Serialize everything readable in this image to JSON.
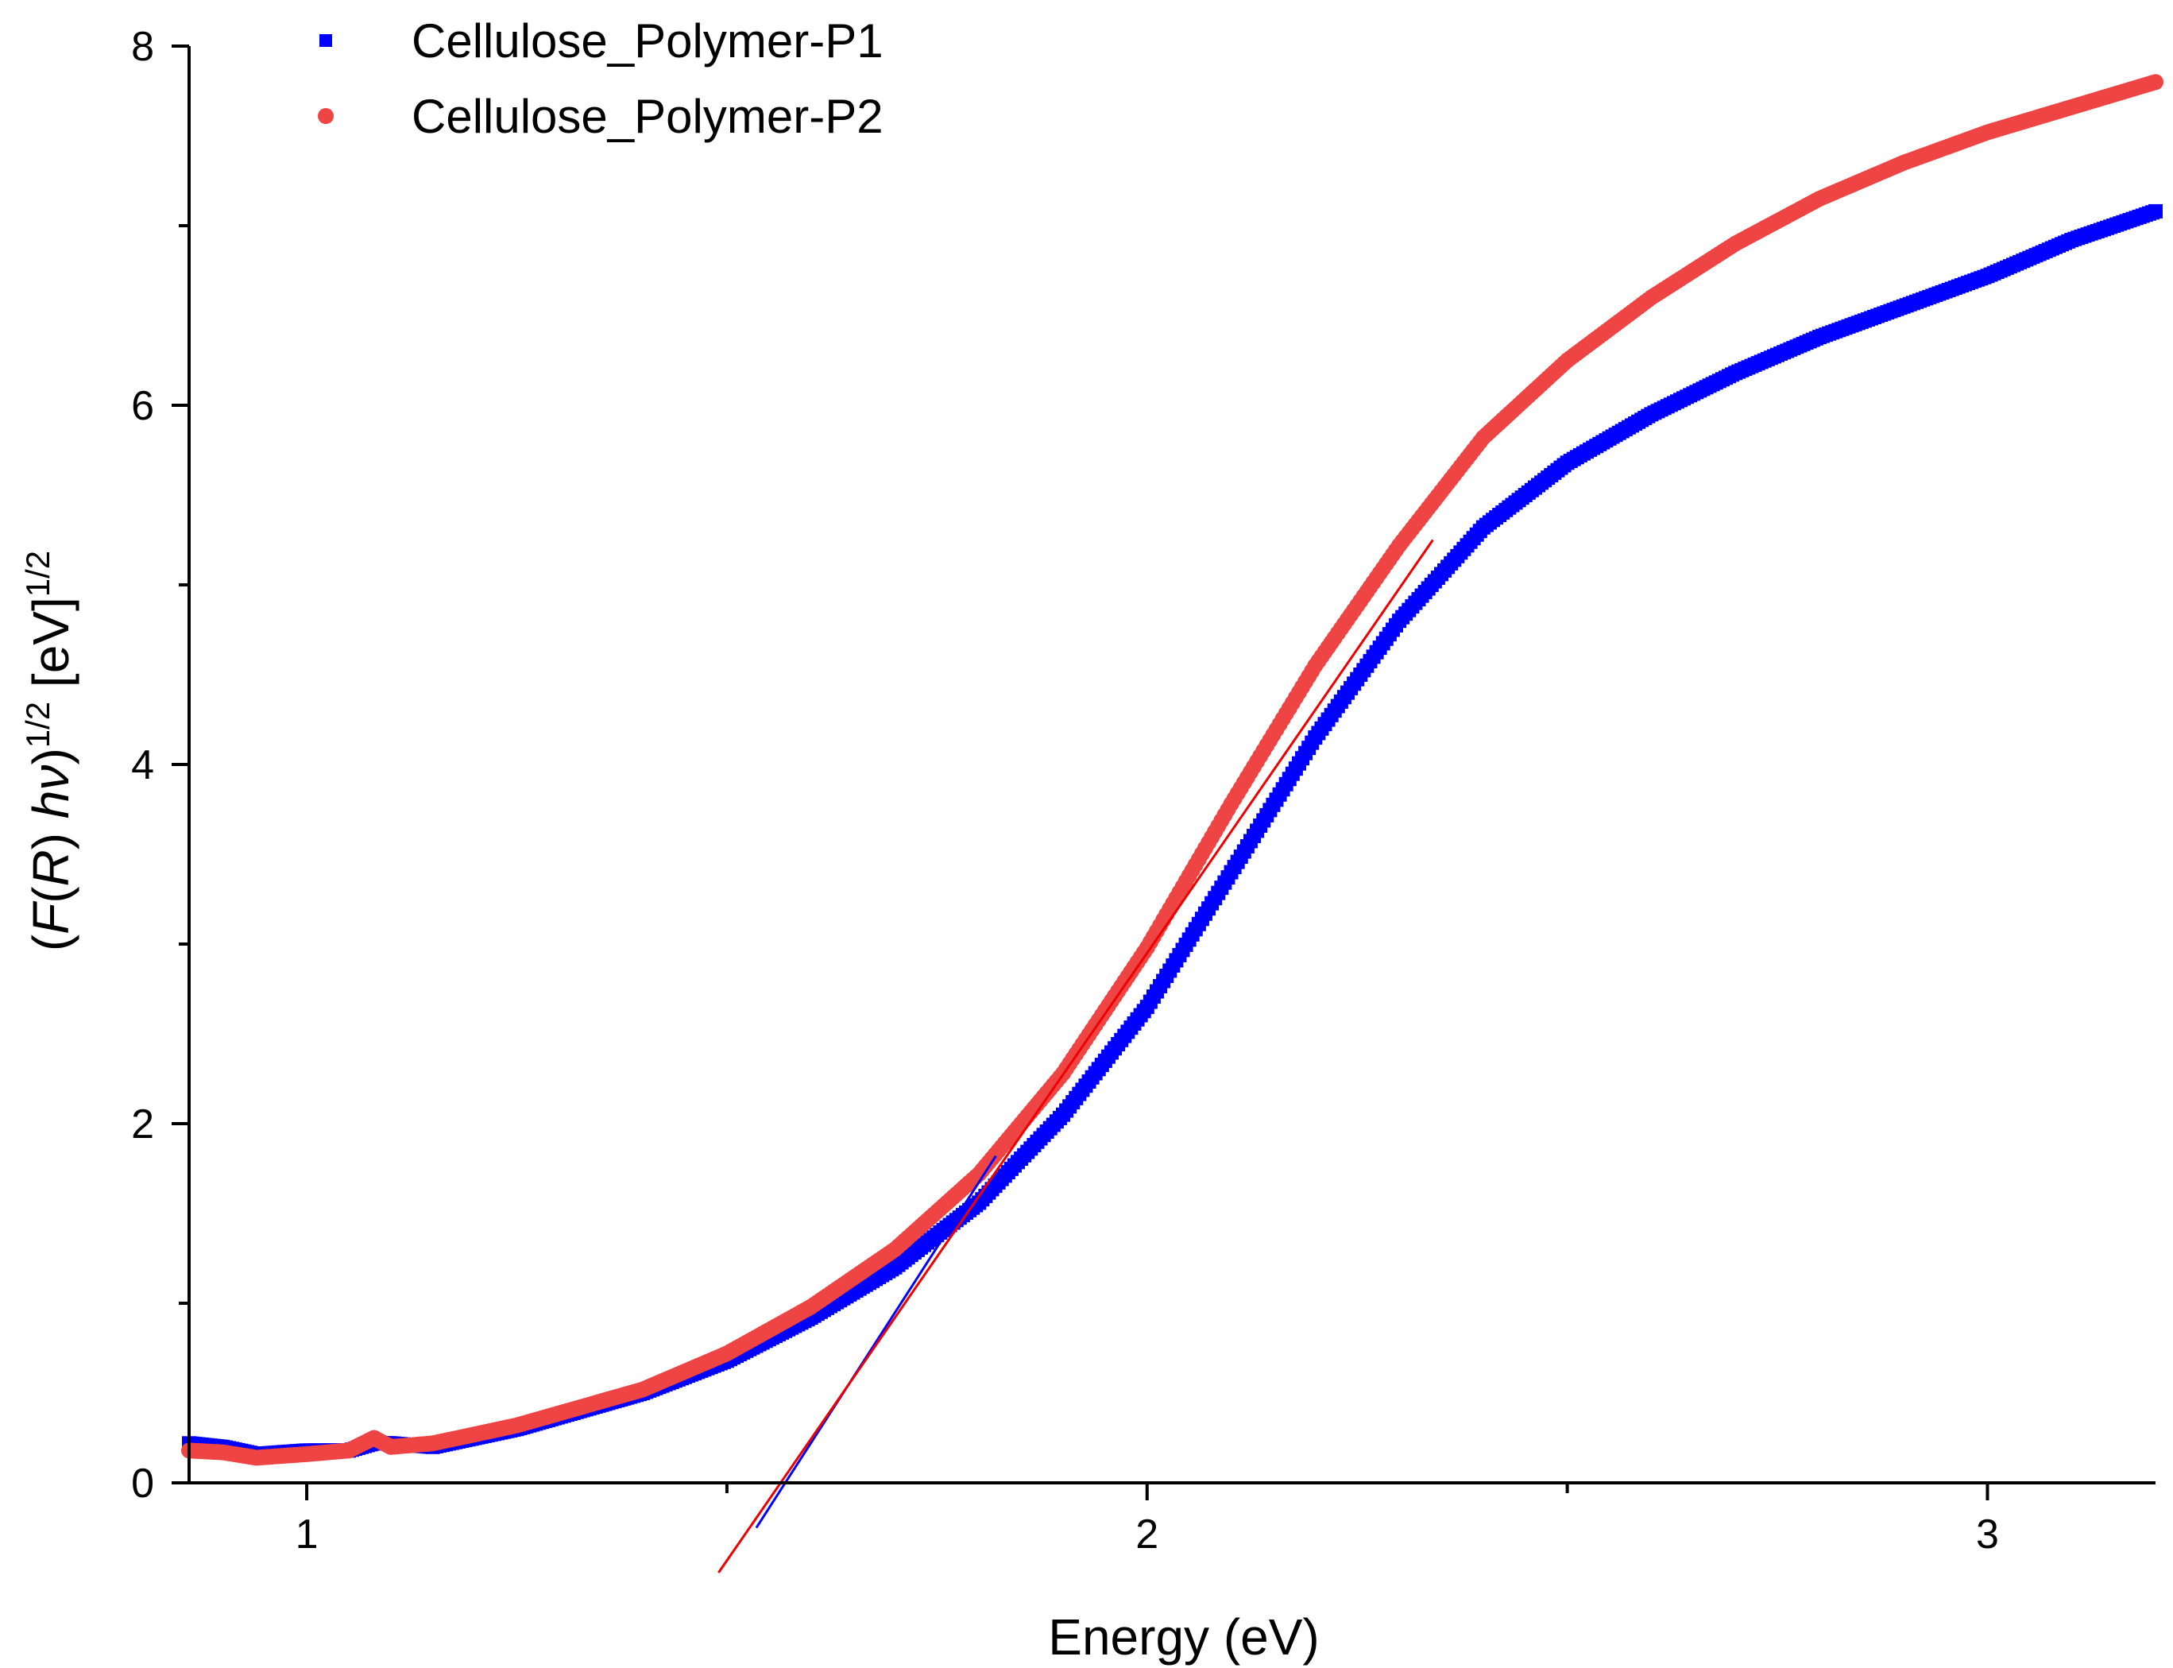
{
  "chart_data": {
    "type": "scatter",
    "title": "",
    "xlabel": "Energy (eV)",
    "ylabel": {
      "open": "(",
      "f": "F",
      "paren_open": "(",
      "r": "R",
      "paren_close": ")",
      "h": "h",
      "nu": "ν",
      "close": ")",
      "sup1": "1/2",
      "unit": "[eV]",
      "sup2": "1/2"
    },
    "xlim": [
      0.86,
      3.2
    ],
    "ylim": [
      0,
      8
    ],
    "x_ticks": [
      1,
      2,
      3
    ],
    "x_minor_ticks": [
      1.5,
      2.5
    ],
    "y_ticks": [
      0,
      2,
      4,
      6,
      8
    ],
    "y_minor_ticks": [
      1,
      3,
      5,
      7
    ],
    "x_tick_labels": [
      "1",
      "2",
      "3"
    ],
    "y_tick_labels": [
      "0",
      "2",
      "4",
      "6",
      "8"
    ],
    "legend": "top-left",
    "series": [
      {
        "name": "Cellulose_Polymer-P1",
        "marker": "square",
        "color": "#0000ff",
        "x": [
          0.86,
          0.9,
          0.94,
          1.0,
          1.05,
          1.08,
          1.1,
          1.15,
          1.25,
          1.4,
          1.5,
          1.6,
          1.7,
          1.8,
          1.9,
          2.0,
          2.1,
          2.2,
          2.3,
          2.4,
          2.5,
          2.6,
          2.7,
          2.8,
          2.9,
          3.0,
          3.1,
          3.2
        ],
        "y": [
          0.22,
          0.2,
          0.16,
          0.18,
          0.18,
          0.22,
          0.22,
          0.2,
          0.3,
          0.5,
          0.68,
          0.92,
          1.2,
          1.56,
          2.05,
          2.65,
          3.4,
          4.15,
          4.8,
          5.32,
          5.68,
          5.95,
          6.18,
          6.38,
          6.55,
          6.72,
          6.92,
          7.08
        ]
      },
      {
        "name": "Cellulose_Polymer-P2",
        "marker": "circle",
        "color": "#ee4444",
        "x": [
          0.86,
          0.9,
          0.94,
          1.0,
          1.05,
          1.08,
          1.1,
          1.15,
          1.25,
          1.4,
          1.5,
          1.6,
          1.7,
          1.8,
          1.9,
          2.0,
          2.1,
          2.2,
          2.3,
          2.4,
          2.5,
          2.6,
          2.7,
          2.8,
          2.9,
          3.0,
          3.1,
          3.2
        ],
        "y": [
          0.18,
          0.17,
          0.14,
          0.16,
          0.18,
          0.25,
          0.2,
          0.22,
          0.32,
          0.52,
          0.72,
          0.98,
          1.3,
          1.72,
          2.28,
          2.98,
          3.78,
          4.55,
          5.22,
          5.82,
          6.25,
          6.6,
          6.9,
          7.15,
          7.35,
          7.52,
          7.66,
          7.8
        ]
      }
    ],
    "fit_lines": [
      {
        "series": "Cellulose_Polymer-P1",
        "color": "#0000ff",
        "x": [
          1.535,
          1.82
        ],
        "y": [
          -0.25,
          1.82
        ]
      },
      {
        "series": "Cellulose_Polymer-P2",
        "color": "#ee0000",
        "x": [
          1.49,
          2.34
        ],
        "y": [
          -0.5,
          5.25
        ]
      }
    ]
  }
}
